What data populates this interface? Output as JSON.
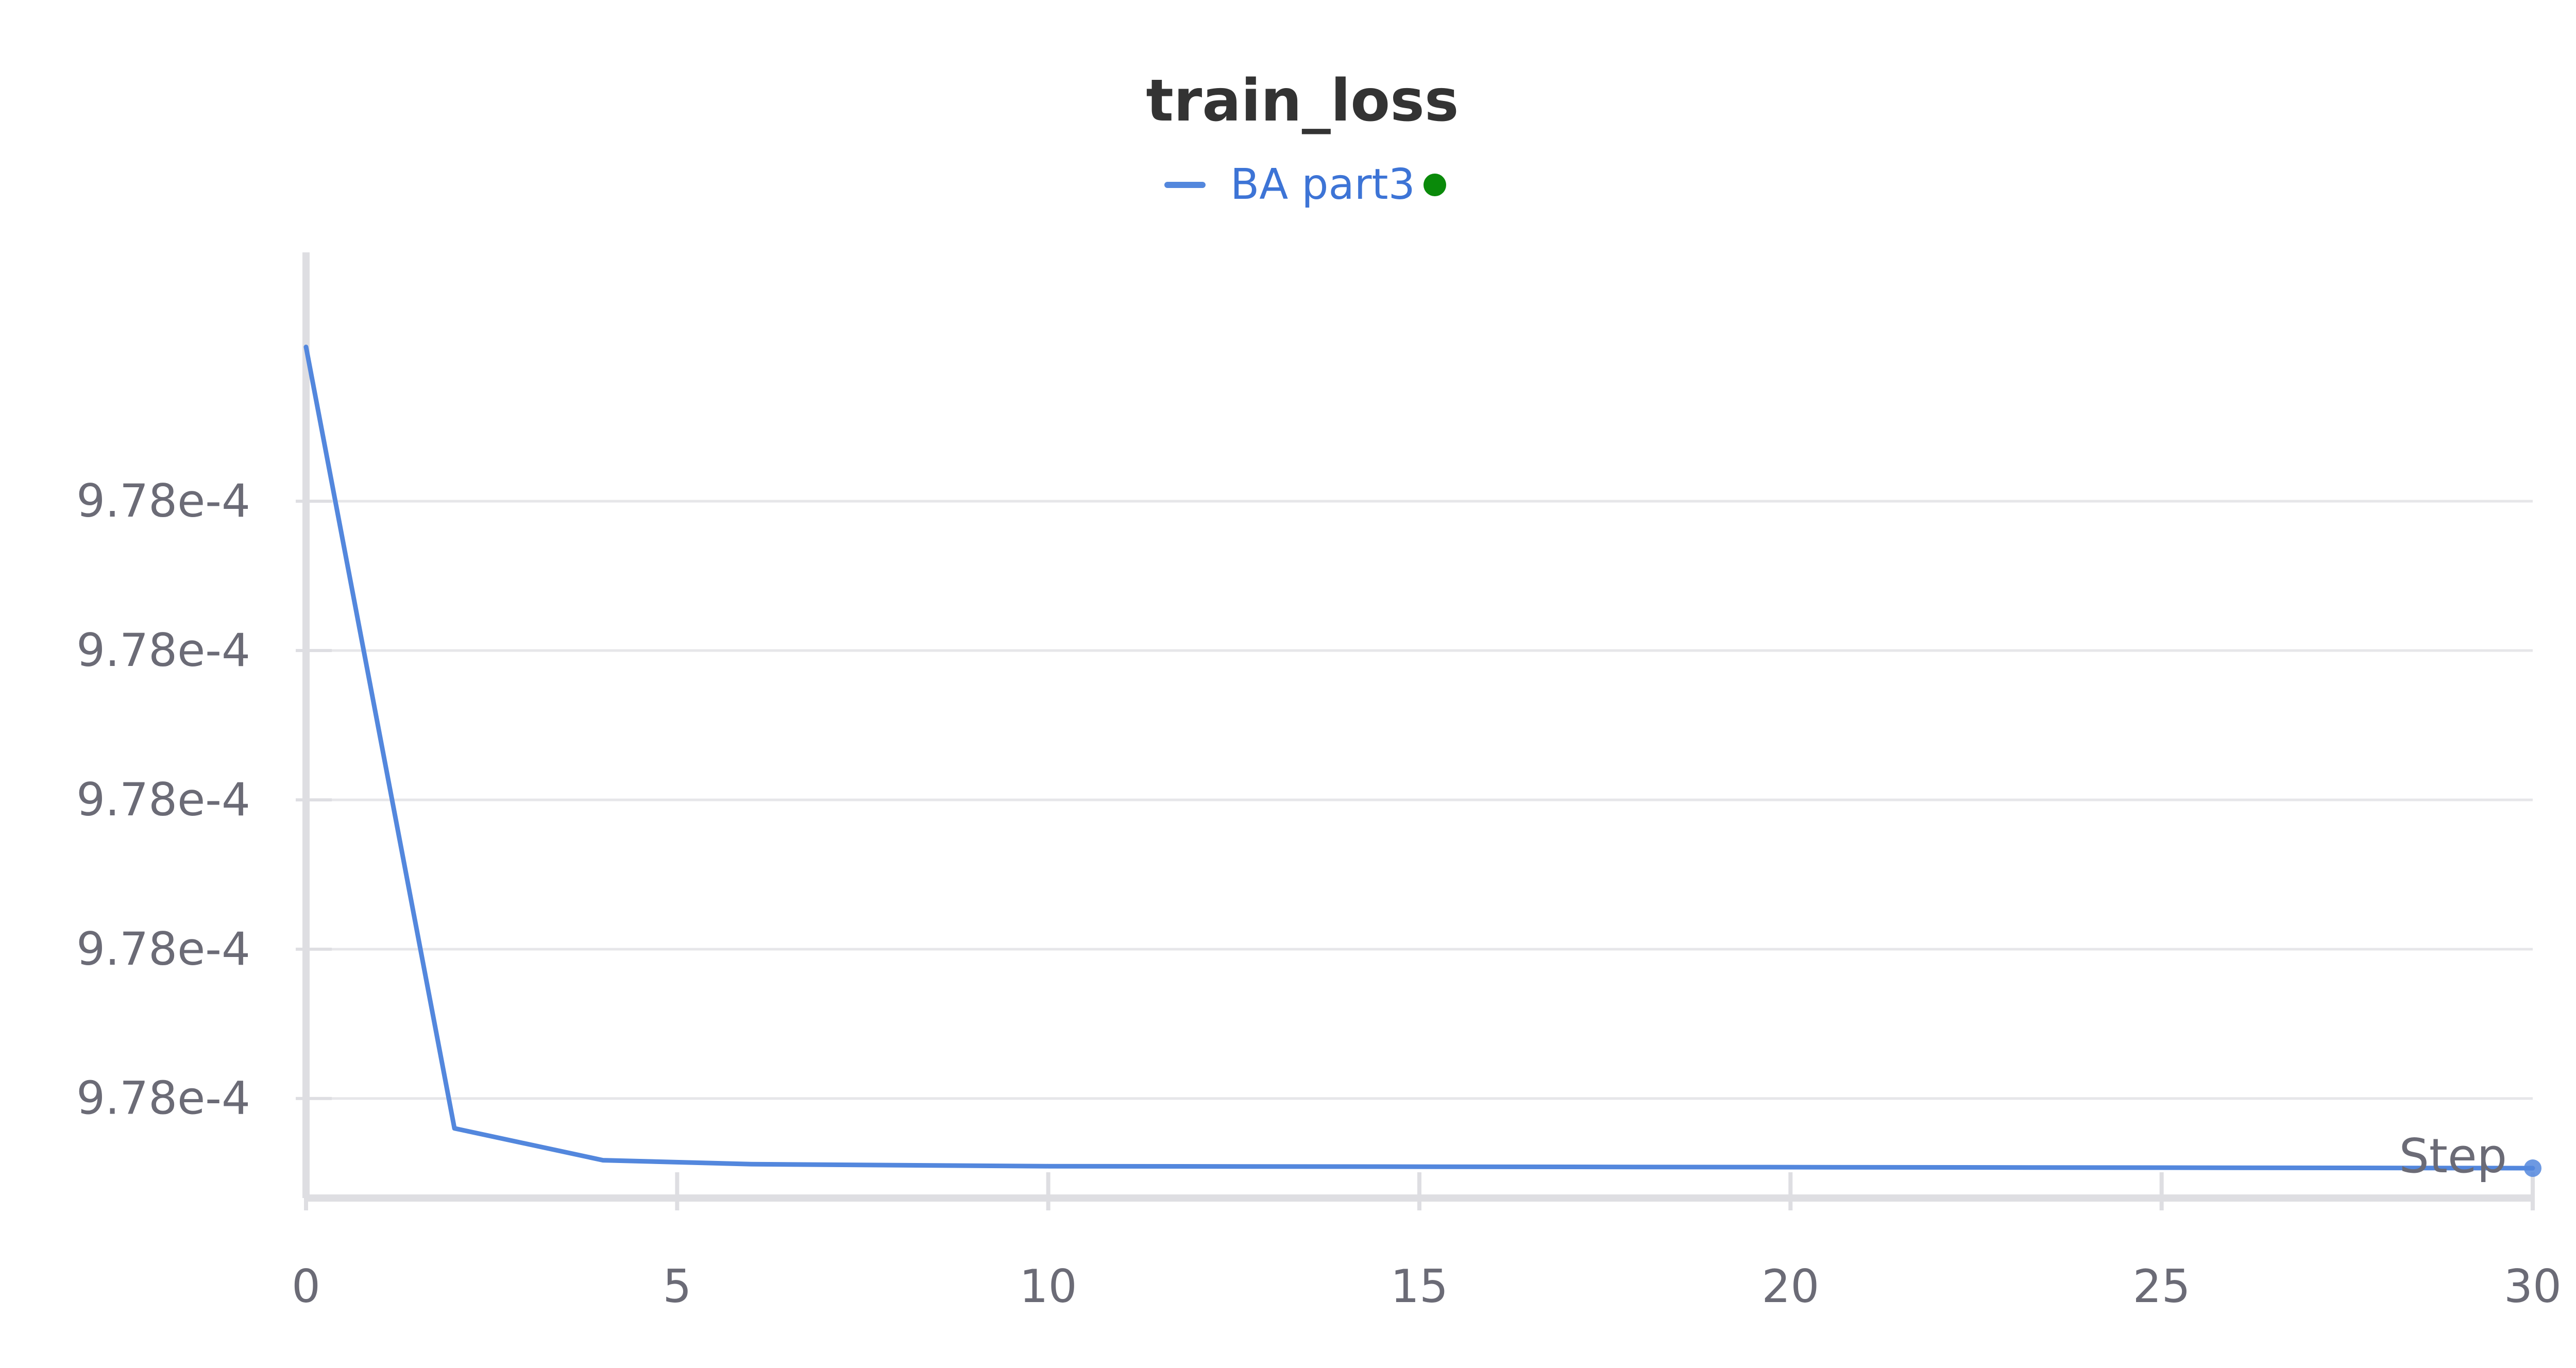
{
  "chart_data": {
    "type": "line",
    "title": "train_loss",
    "xlabel": "Step",
    "ylabel": "",
    "xlim": [
      0,
      30
    ],
    "ylim": [
      0.000977993,
      0.0009780025
    ],
    "xticks": [
      "0",
      "5",
      "10",
      "15",
      "20",
      "25",
      "30"
    ],
    "xtick_values": [
      0,
      5,
      10,
      15,
      20,
      25,
      30
    ],
    "yticks": [
      "9.78e-4",
      "9.78e-4",
      "9.78e-4",
      "9.78e-4",
      "9.78e-4"
    ],
    "ytick_values": [
      0.000978,
      0.0009779985,
      0.000977997,
      0.0009779955,
      0.000977994
    ],
    "grid": true,
    "legend": "top-center",
    "series": [
      {
        "name": "BA part3",
        "color": "#5387dd",
        "marker_color": "#0a8a0a",
        "x": [
          0,
          2,
          4,
          6,
          10,
          30
        ],
        "y": [
          0.00097800155,
          0.0009779937,
          0.00097799338,
          0.00097799334,
          0.00097799332,
          0.0009779933
        ]
      }
    ]
  }
}
